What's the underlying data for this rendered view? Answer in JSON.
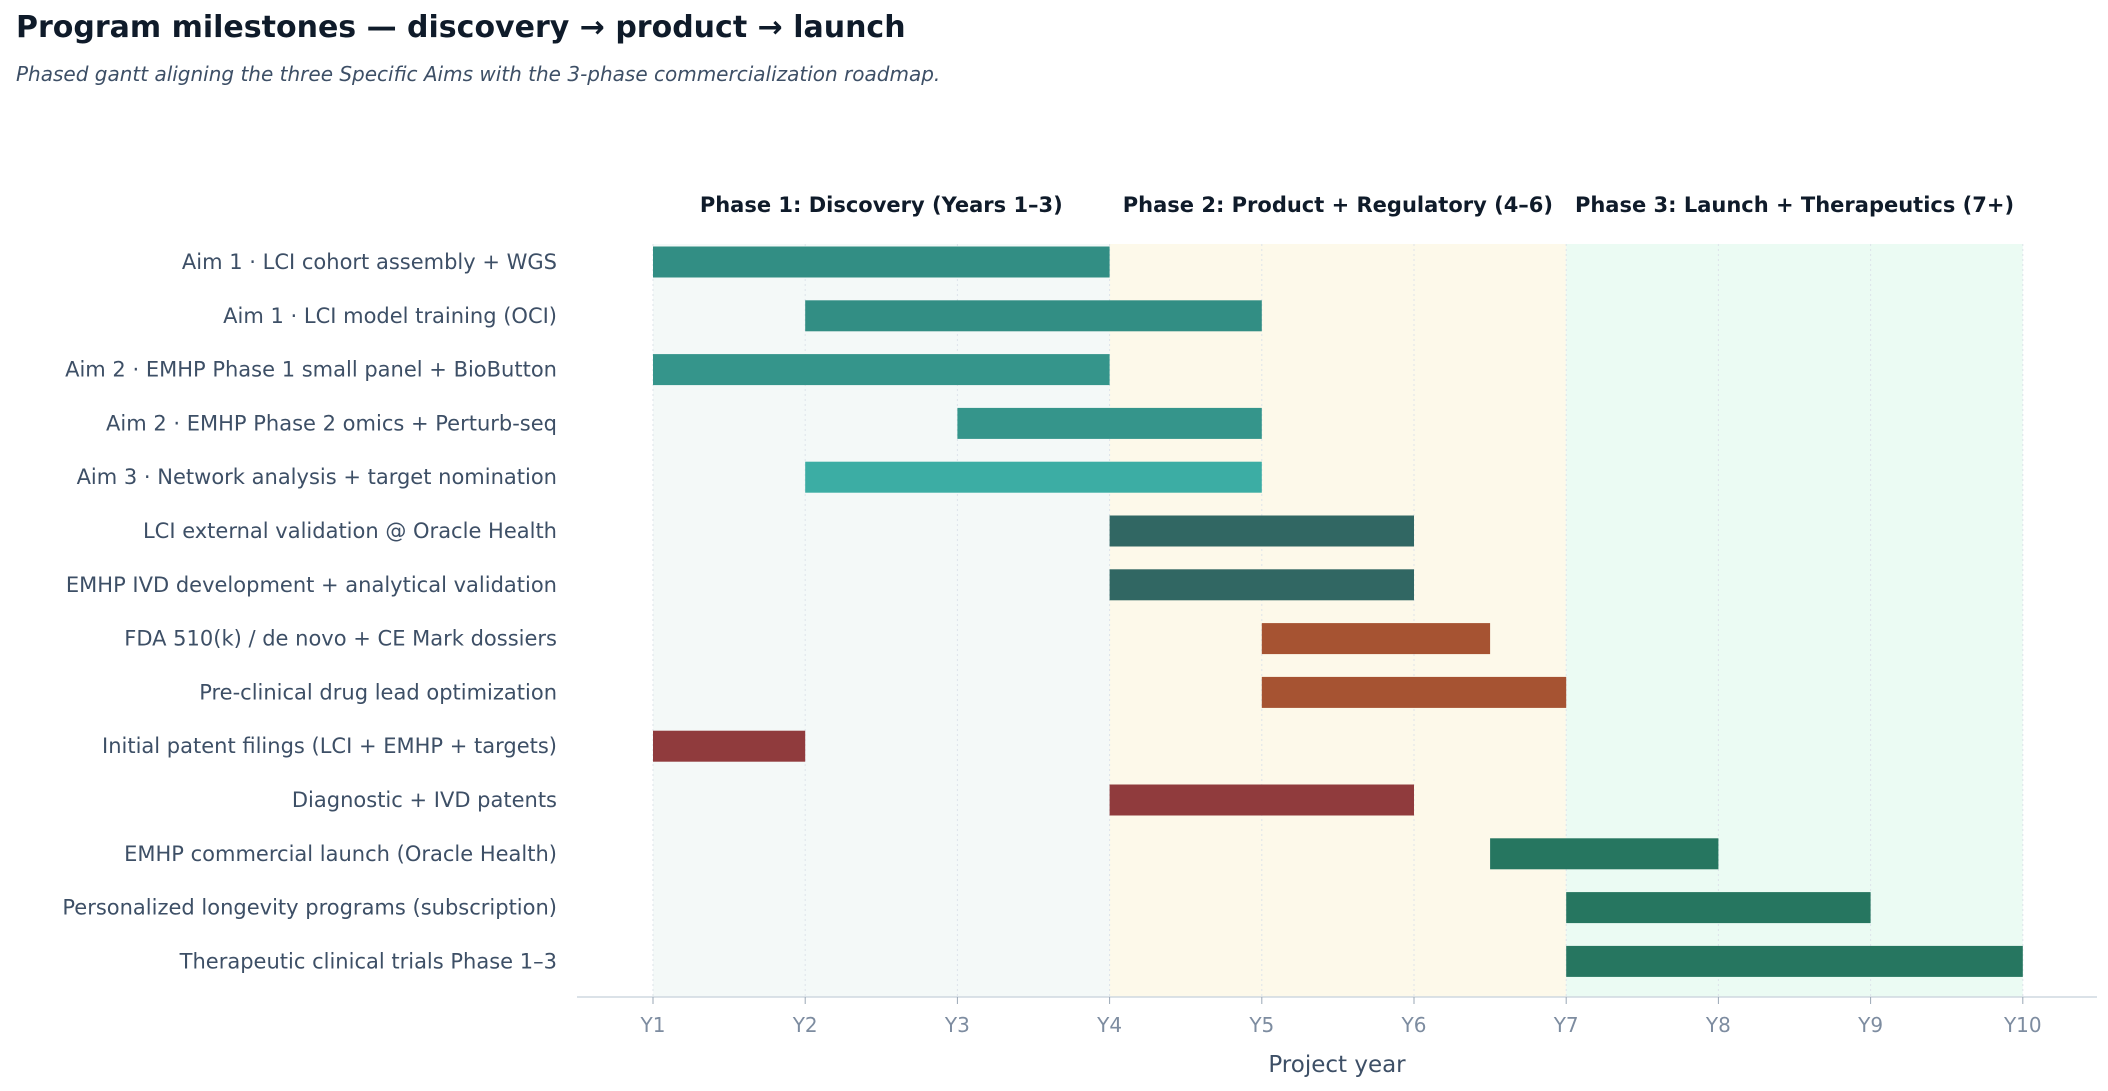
{
  "header": {
    "title": "Program milestones — discovery → product → launch",
    "subtitle": "Phased gantt aligning the three Specific Aims with the 3-phase commercialization roadmap."
  },
  "chart_data": {
    "type": "gantt",
    "xlabel": "Project year",
    "x_ticks": [
      {
        "value": 1,
        "label": "Y1"
      },
      {
        "value": 2,
        "label": "Y2"
      },
      {
        "value": 3,
        "label": "Y3"
      },
      {
        "value": 4,
        "label": "Y4"
      },
      {
        "value": 5,
        "label": "Y5"
      },
      {
        "value": 6,
        "label": "Y6"
      },
      {
        "value": 7,
        "label": "Y7"
      },
      {
        "value": 8,
        "label": "Y8"
      },
      {
        "value": 9,
        "label": "Y9"
      },
      {
        "value": 10,
        "label": "Y10"
      }
    ],
    "xlim": [
      0.5,
      10.5
    ],
    "grid": "vertical dotted",
    "phases": [
      {
        "label": "Phase 1: Discovery (Years 1–3)",
        "start": 1,
        "end": 4,
        "color": "#f4f9f8"
      },
      {
        "label": "Phase 2: Product + Regulatory (4–6)",
        "start": 4,
        "end": 7,
        "color": "#fdf9ea"
      },
      {
        "label": "Phase 3: Launch + Therapeutics (7+)",
        "start": 7,
        "end": 10,
        "color": "#ebfbf3"
      }
    ],
    "tasks": [
      {
        "label": "Aim 1 · LCI cohort assembly + WGS",
        "start": 1,
        "end": 4,
        "color": "#328e84"
      },
      {
        "label": "Aim 1 · LCI model training (OCI)",
        "start": 2,
        "end": 5,
        "color": "#328e84"
      },
      {
        "label": "Aim 2 · EMHP Phase 1 small panel + BioButton",
        "start": 1,
        "end": 4,
        "color": "#35958b"
      },
      {
        "label": "Aim 2 · EMHP Phase 2 omics + Perturb-seq",
        "start": 3,
        "end": 5,
        "color": "#35958b"
      },
      {
        "label": "Aim 3 · Network analysis + target nomination",
        "start": 2,
        "end": 5,
        "color": "#3cada4"
      },
      {
        "label": "LCI external validation @ Oracle Health",
        "start": 4,
        "end": 6,
        "color": "#316763"
      },
      {
        "label": "EMHP IVD development + analytical validation",
        "start": 4,
        "end": 6,
        "color": "#316763"
      },
      {
        "label": "FDA 510(k) / de novo + CE Mark dossiers",
        "start": 5,
        "end": 6.5,
        "color": "#a65332"
      },
      {
        "label": "Pre-clinical drug lead optimization",
        "start": 5,
        "end": 7,
        "color": "#a65332"
      },
      {
        "label": "Initial patent filings (LCI + EMHP + targets)",
        "start": 1,
        "end": 2,
        "color": "#903b3d"
      },
      {
        "label": "Diagnostic + IVD patents",
        "start": 4,
        "end": 6,
        "color": "#903b3d"
      },
      {
        "label": "EMHP commercial launch (Oracle Health)",
        "start": 6.5,
        "end": 8,
        "color": "#267660"
      },
      {
        "label": "Personalized longevity programs (subscription)",
        "start": 7,
        "end": 9,
        "color": "#267660"
      },
      {
        "label": "Therapeutic clinical trials Phase 1–3",
        "start": 7,
        "end": 10,
        "color": "#267660"
      }
    ]
  }
}
